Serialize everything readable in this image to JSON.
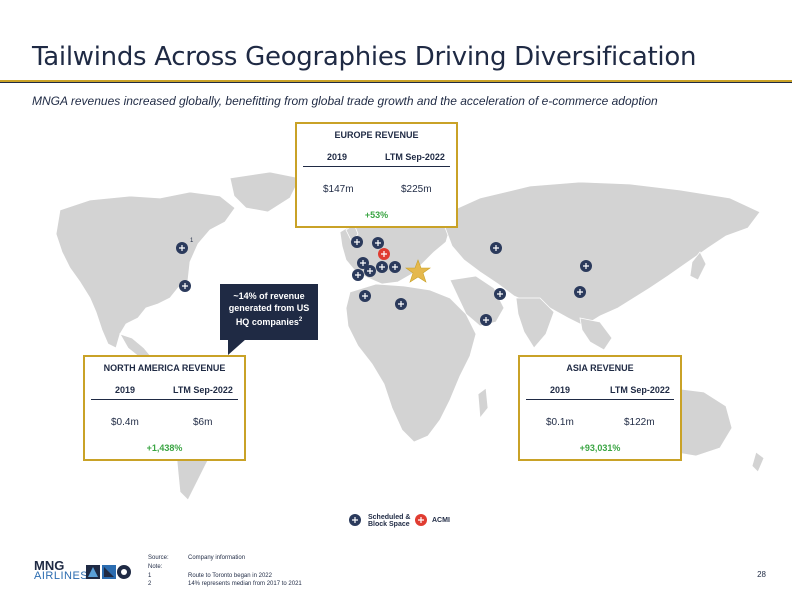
{
  "title": "Tailwinds Across Geographies Driving Diversification",
  "subtitle": "MNGA revenues increased globally, benefitting from global trade growth and the acceleration of e-commerce adoption",
  "europe": {
    "title": "EUROPE REVENUE",
    "col1": "2019",
    "col2": "LTM Sep-2022",
    "val1": "$147m",
    "val2": "$225m",
    "growth": "+53%"
  },
  "north_america": {
    "title": "NORTH AMERICA REVENUE",
    "col1": "2019",
    "col2": "LTM Sep-2022",
    "val1": "$0.4m",
    "val2": "$6m",
    "growth": "+1,438%"
  },
  "asia": {
    "title": "ASIA REVENUE",
    "col1": "2019",
    "col2": "LTM Sep-2022",
    "val1": "$0.1m",
    "val2": "$122m",
    "growth": "+93,031%"
  },
  "callout": {
    "line1": "~14% of revenue",
    "line2": "generated from US",
    "line3": "HQ companies",
    "sup": "2"
  },
  "toronto_note_marker": "1",
  "legend": {
    "scheduled_line1": "Scheduled &",
    "scheduled_line2": "Block Space",
    "acmi": "ACMI"
  },
  "footer": {
    "source_label": "Source:",
    "source_text": "Company information",
    "note_label": "Note:",
    "note1_num": "1",
    "note1_text": "Route to Toronto began in 2022",
    "note2_num": "2",
    "note2_text": "14% represents median from 2017 to 2021"
  },
  "logo": {
    "line1": "MNG",
    "line2": "AIRLINES"
  },
  "page_number": "28",
  "colors": {
    "navy": "#1f2a44",
    "gold": "#c9a227",
    "green": "#3aa543",
    "acmi_red": "#e03c31",
    "map_land": "#d3d3d3"
  },
  "icons": {
    "scheduled": "airplane-icon",
    "acmi": "airplane-acmi-icon",
    "hq": "star-icon"
  }
}
